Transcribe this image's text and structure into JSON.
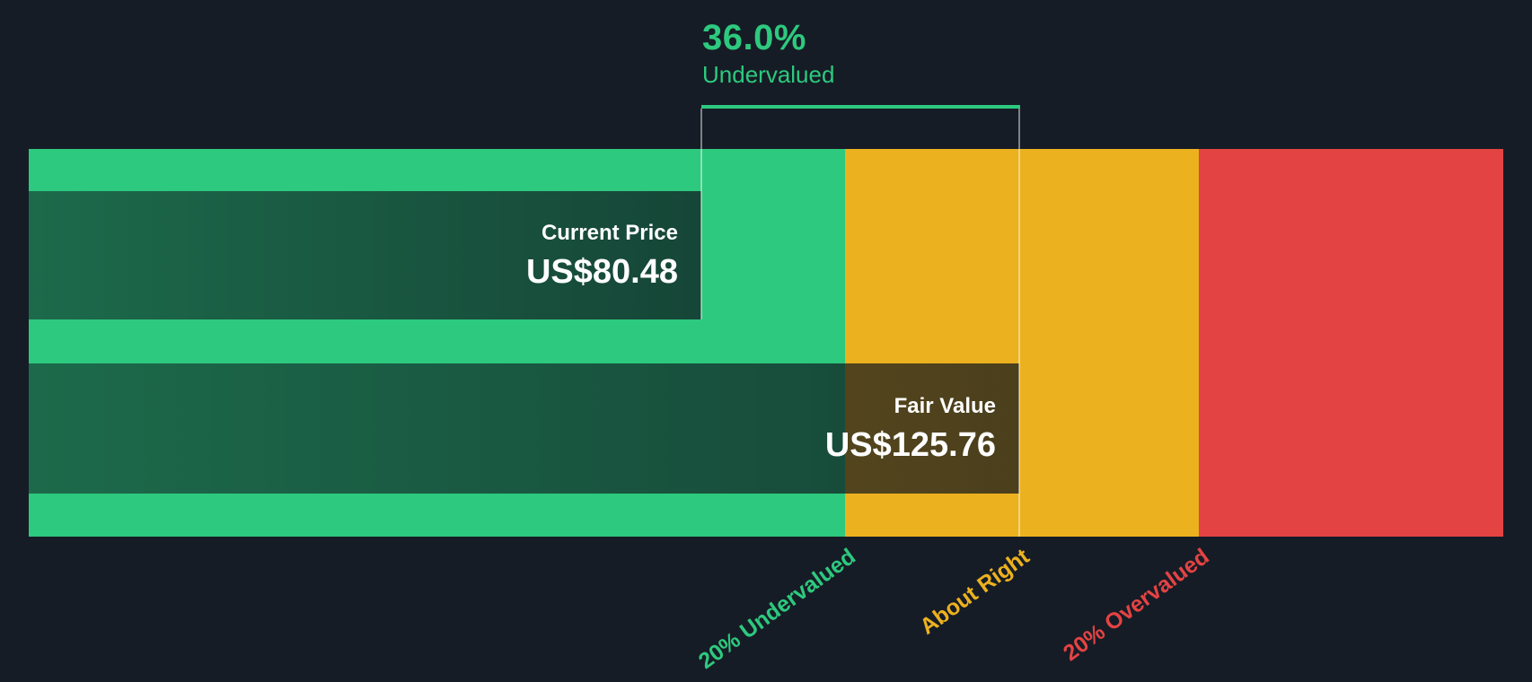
{
  "header": {
    "percent": "36.0%",
    "status": "Undervalued"
  },
  "colors": {
    "background": "#161c26",
    "undervalued_green": "#2dc97e",
    "about_right_yellow": "#ecb11e",
    "overvalued_red": "#e44343",
    "bar_text": "#ffffff"
  },
  "chart_data": {
    "type": "bar",
    "orientation": "horizontal",
    "title": "36.0% Undervalued",
    "currency": "US$",
    "undervalued_percent": 36.0,
    "series": [
      {
        "name": "Current Price",
        "value": 80.48,
        "display": "US$80.48"
      },
      {
        "name": "Fair Value",
        "value": 125.76,
        "display": "US$125.76"
      }
    ],
    "zones": [
      {
        "label": "20% Undervalued",
        "color": "#2dc97e"
      },
      {
        "label": "About Right",
        "color": "#ecb11e"
      },
      {
        "label": "20% Overvalued",
        "color": "#e44343"
      }
    ],
    "annotation": {
      "text": "36.0% Undervalued",
      "spans_from": "Current Price",
      "spans_to": "Fair Value"
    },
    "layout_hints": {
      "axis_labels_rotated_deg": -36,
      "legend": "none",
      "grid": "off",
      "zone_width_fractions": [
        0.554,
        0.24,
        0.206
      ]
    }
  }
}
